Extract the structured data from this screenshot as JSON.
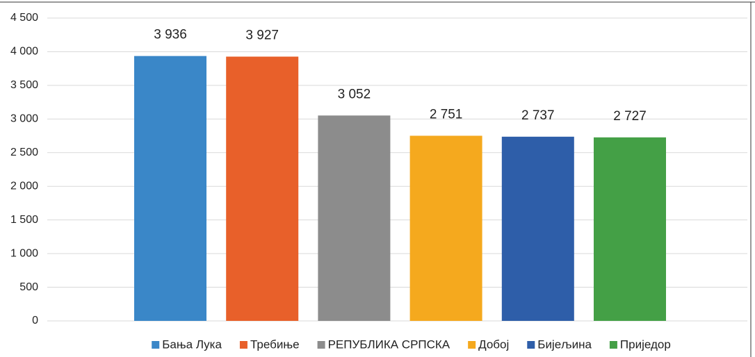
{
  "chart_data": {
    "type": "bar",
    "categories": [
      "Бања Лука",
      "Требиње",
      "РЕПУБЛИКА СРПСКА",
      "Добој",
      "Бијељина",
      "Приједор"
    ],
    "values": [
      3936,
      3927,
      3052,
      2751,
      2737,
      2727
    ],
    "value_labels": [
      "3 936",
      "3 927",
      "3 052",
      "2 751",
      "2 737",
      "2 727"
    ],
    "colors": [
      "#3a87c8",
      "#e8602a",
      "#8c8c8c",
      "#f5a91e",
      "#2e5ea9",
      "#44a046"
    ],
    "ylim": [
      0,
      4500
    ],
    "yticks": [
      0,
      500,
      {
        "value": 1000,
        "label": "1 000"
      },
      {
        "value": 1500,
        "label": "1 500"
      },
      {
        "value": 2000,
        "label": "2 000"
      },
      {
        "value": 2500,
        "label": "2 500"
      },
      {
        "value": 3000,
        "label": "3 000"
      },
      {
        "value": 3500,
        "label": "3 500"
      },
      {
        "value": 4000,
        "label": "4 000"
      },
      {
        "value": 4500,
        "label": "4 500"
      }
    ],
    "grid": true,
    "legend": "bottom"
  }
}
